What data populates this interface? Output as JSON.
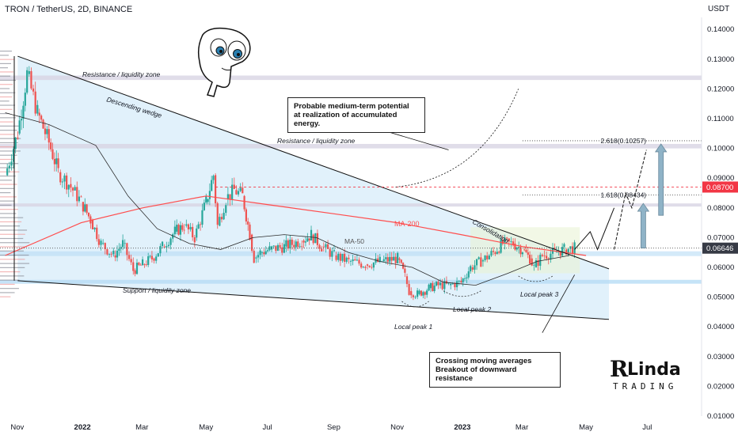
{
  "header": {
    "title": "TRON / TetherUS, 2D, BINANCE",
    "currency": "USDT"
  },
  "colors": {
    "bull": "#26a69a",
    "bear": "#ef5350",
    "ma200": "#ff4d4d",
    "ma50": "#2b2b2b",
    "wedge_fill": "#c9e6f7",
    "zone": "#d8d4e4",
    "support_band": "#b7dcf5",
    "price_tag": "#363a45",
    "level_tag": "#f23645"
  },
  "chart_data": {
    "type": "candlestick",
    "title": "TRON / TetherUS, 2D, BINANCE",
    "ylabel": "USDT",
    "ylim": [
      0.01,
      0.145
    ],
    "xlim": [
      "2021-10-15",
      "2023-08-20"
    ],
    "y_ticks": [
      "0.14000",
      "0.13000",
      "0.12000",
      "0.11000",
      "0.10000",
      "0.09000",
      "0.08000",
      "0.07000",
      "0.06000",
      "0.05000",
      "0.04000",
      "0.03000",
      "0.02000",
      "0.01000"
    ],
    "x_ticks": [
      {
        "label": "Nov",
        "date": "2021-11-01",
        "bold": false
      },
      {
        "label": "2022",
        "date": "2022-01-01",
        "bold": true
      },
      {
        "label": "Mar",
        "date": "2022-03-01",
        "bold": false
      },
      {
        "label": "May",
        "date": "2022-05-01",
        "bold": false
      },
      {
        "label": "Jul",
        "date": "2022-07-01",
        "bold": false
      },
      {
        "label": "Sep",
        "date": "2022-09-01",
        "bold": false
      },
      {
        "label": "Nov",
        "date": "2022-11-01",
        "bold": false
      },
      {
        "label": "2023",
        "date": "2023-01-01",
        "bold": true
      },
      {
        "label": "Mar",
        "date": "2023-03-01",
        "bold": false
      },
      {
        "label": "May",
        "date": "2023-05-01",
        "bold": false
      },
      {
        "label": "Jul",
        "date": "2023-07-01",
        "bold": false
      }
    ],
    "price_tags": [
      {
        "value": 0.087,
        "label": "0.08700",
        "kind": "level"
      },
      {
        "value": 0.06646,
        "label": "0.06646",
        "kind": "last"
      }
    ],
    "close_path": [
      [
        "2021-10-20",
        0.091
      ],
      [
        "2021-11-01",
        0.105
      ],
      [
        "2021-11-10",
        0.125
      ],
      [
        "2021-11-20",
        0.112
      ],
      [
        "2021-12-01",
        0.102
      ],
      [
        "2021-12-10",
        0.092
      ],
      [
        "2021-12-20",
        0.088
      ],
      [
        "2022-01-01",
        0.082
      ],
      [
        "2022-01-10",
        0.076
      ],
      [
        "2022-01-20",
        0.068
      ],
      [
        "2022-02-01",
        0.064
      ],
      [
        "2022-02-10",
        0.068
      ],
      [
        "2022-02-20",
        0.059
      ],
      [
        "2022-03-01",
        0.061
      ],
      [
        "2022-03-10",
        0.063
      ],
      [
        "2022-03-20",
        0.067
      ],
      [
        "2022-04-01",
        0.072
      ],
      [
        "2022-04-10",
        0.074
      ],
      [
        "2022-04-20",
        0.07
      ],
      [
        "2022-05-01",
        0.082
      ],
      [
        "2022-05-08",
        0.091
      ],
      [
        "2022-05-12",
        0.074
      ],
      [
        "2022-05-20",
        0.083
      ],
      [
        "2022-05-28",
        0.086
      ],
      [
        "2022-06-05",
        0.084
      ],
      [
        "2022-06-12",
        0.071
      ],
      [
        "2022-06-16",
        0.063
      ],
      [
        "2022-06-22",
        0.065
      ],
      [
        "2022-07-01",
        0.066
      ],
      [
        "2022-07-15",
        0.067
      ],
      [
        "2022-08-01",
        0.069
      ],
      [
        "2022-08-10",
        0.071
      ],
      [
        "2022-08-20",
        0.067
      ],
      [
        "2022-09-01",
        0.064
      ],
      [
        "2022-09-15",
        0.062
      ],
      [
        "2022-10-01",
        0.061
      ],
      [
        "2022-10-15",
        0.062
      ],
      [
        "2022-11-01",
        0.063
      ],
      [
        "2022-11-08",
        0.057
      ],
      [
        "2022-11-12",
        0.052
      ],
      [
        "2022-11-20",
        0.051
      ],
      [
        "2022-12-01",
        0.053
      ],
      [
        "2022-12-10",
        0.054
      ],
      [
        "2022-12-20",
        0.054
      ],
      [
        "2023-01-01",
        0.055
      ],
      [
        "2023-01-10",
        0.06
      ],
      [
        "2023-01-20",
        0.062
      ],
      [
        "2023-02-01",
        0.065
      ],
      [
        "2023-02-10",
        0.068
      ],
      [
        "2023-02-20",
        0.068
      ],
      [
        "2023-03-01",
        0.066
      ],
      [
        "2023-03-08",
        0.063
      ],
      [
        "2023-03-12",
        0.06
      ],
      [
        "2023-03-20",
        0.064
      ],
      [
        "2023-04-01",
        0.065
      ],
      [
        "2023-04-10",
        0.066
      ],
      [
        "2023-04-20",
        0.0665
      ]
    ],
    "ma200": [
      [
        "2021-10-20",
        0.064
      ],
      [
        "2022-01-01",
        0.075
      ],
      [
        "2022-03-01",
        0.08
      ],
      [
        "2022-05-01",
        0.084
      ],
      [
        "2022-07-01",
        0.081
      ],
      [
        "2022-09-01",
        0.078
      ],
      [
        "2022-11-01",
        0.075
      ],
      [
        "2023-01-01",
        0.071
      ],
      [
        "2023-03-01",
        0.067
      ],
      [
        "2023-05-01",
        0.064
      ]
    ],
    "ma50": [
      [
        "2021-10-20",
        0.112
      ],
      [
        "2021-12-01",
        0.108
      ],
      [
        "2022-01-15",
        0.101
      ],
      [
        "2022-02-15",
        0.084
      ],
      [
        "2022-03-15",
        0.073
      ],
      [
        "2022-04-15",
        0.068
      ],
      [
        "2022-05-15",
        0.066
      ],
      [
        "2022-06-15",
        0.07
      ],
      [
        "2022-07-15",
        0.071
      ],
      [
        "2022-08-15",
        0.07
      ],
      [
        "2022-09-15",
        0.065
      ],
      [
        "2022-10-15",
        0.062
      ],
      [
        "2022-11-15",
        0.06
      ],
      [
        "2022-12-15",
        0.055
      ],
      [
        "2023-01-15",
        0.054
      ],
      [
        "2023-02-15",
        0.058
      ],
      [
        "2023-03-15",
        0.062
      ],
      [
        "2023-04-15",
        0.064
      ]
    ],
    "wedge": {
      "upper": [
        [
          "2021-11-01",
          0.131
        ],
        [
          "2023-05-23",
          0.0595
        ]
      ],
      "lower": [
        [
          "2021-11-01",
          0.0555
        ],
        [
          "2023-05-23",
          0.0425
        ]
      ]
    },
    "zones": [
      {
        "label": "Resistance / liquidity zone",
        "from": 0.123,
        "to": 0.1245,
        "kind": "resistance"
      },
      {
        "label": "Resistance / liquidity zone",
        "from": 0.1,
        "to": 0.1015,
        "kind": "resistance"
      },
      {
        "label": "",
        "from": 0.0805,
        "to": 0.0815,
        "kind": "resistance"
      },
      {
        "label": "Support / liquidity zone",
        "from": 0.0545,
        "to": 0.0558,
        "kind": "support"
      }
    ],
    "support_band": {
      "from": 0.0638,
      "to": 0.0654
    },
    "fib_levels": [
      {
        "label": "1.618(0.08434)",
        "value": 0.08434
      },
      {
        "label": "2.618(0.10257)",
        "value": 0.10257
      }
    ],
    "annotations": [
      {
        "text": "Resistance / liquidity zone",
        "kind": "zone"
      },
      {
        "text": "Descending wedge",
        "kind": "wedge"
      },
      {
        "text": "Resistance / liquidity zone",
        "kind": "zone"
      },
      {
        "text": "MA-200",
        "kind": "ma200"
      },
      {
        "text": "MA-50",
        "kind": "ma50"
      },
      {
        "text": "Consolidation",
        "kind": "consolidation"
      },
      {
        "text": "Support / liquidity zone",
        "kind": "zone"
      },
      {
        "text": "Local peak 1",
        "kind": "peak"
      },
      {
        "text": "Local peak 2",
        "kind": "peak"
      },
      {
        "text": "Local peak 3",
        "kind": "peak"
      }
    ]
  },
  "callouts": {
    "top": [
      "Probable medium-term potential",
      "at realization of accumulated energy."
    ],
    "bottom": [
      "Crossing moving averages",
      "Breakout of downward resistance"
    ]
  },
  "brand": {
    "name": "Linda",
    "tagline": "TRADING"
  }
}
